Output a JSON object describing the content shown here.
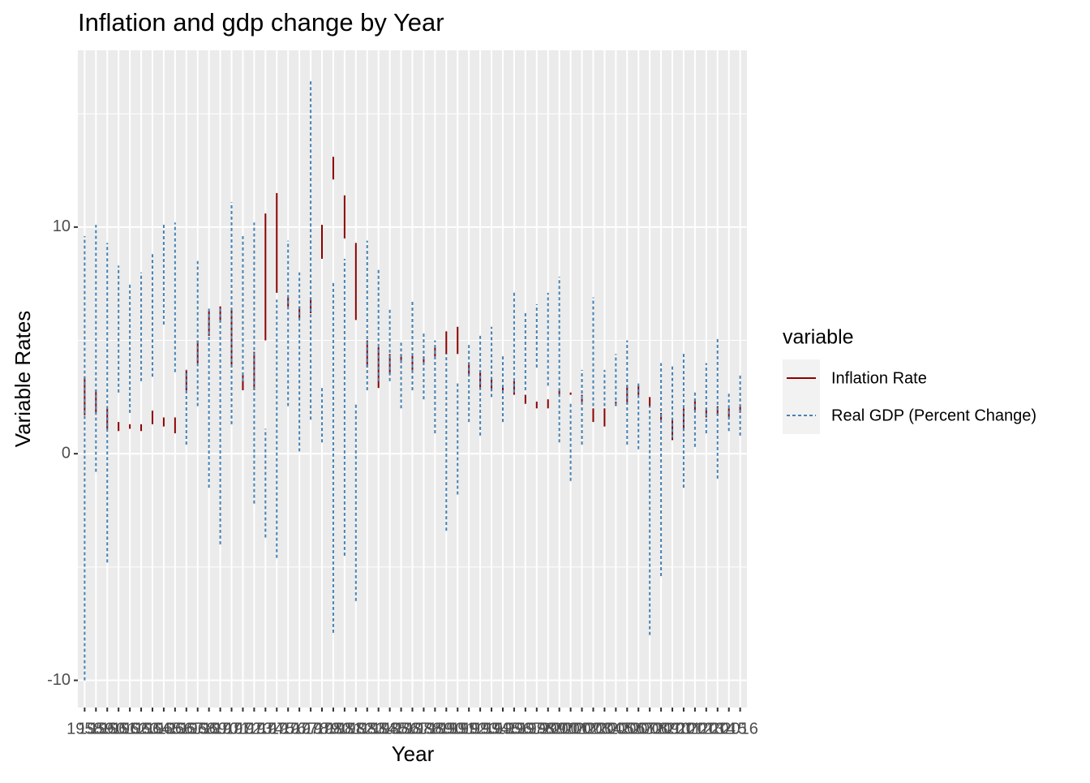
{
  "chart_data": {
    "type": "range-segment",
    "title": "Inflation and gdp change by Year",
    "x_label": "Year",
    "y_label": "Variable Rates",
    "categories": [
      "1958",
      "1959",
      "1960",
      "1961",
      "1962",
      "1963",
      "1964",
      "1965",
      "1966",
      "1967",
      "1968",
      "1969",
      "1970",
      "1971",
      "1972",
      "1973",
      "1974",
      "1975",
      "1976",
      "1977",
      "1978",
      "1979",
      "1980",
      "1981",
      "1982",
      "1983",
      "1984",
      "1985",
      "1986",
      "1987",
      "1988",
      "1989",
      "1990",
      "1991",
      "1992",
      "1993",
      "1994",
      "1995",
      "1996",
      "1997",
      "1998",
      "1999",
      "2000",
      "2001",
      "2002",
      "2003",
      "2004",
      "2005",
      "2006",
      "2007",
      "2008",
      "2009",
      "2010",
      "2011",
      "2012",
      "2013",
      "2014",
      "2015",
      "2016"
    ],
    "ylim": [
      -11.2,
      17.8
    ],
    "yticks": [
      -10,
      0,
      10
    ],
    "grid": true,
    "legend_title": "variable",
    "series": [
      {
        "name": "Inflation Rate",
        "color": "#8b0000",
        "dash": "none",
        "low": [
          1.7,
          1.8,
          1.1,
          1.0,
          1.1,
          1.0,
          1.3,
          1.2,
          0.9,
          2.8,
          4.0,
          5.2,
          5.8,
          3.8,
          2.8,
          2.8,
          5.0,
          7.1,
          6.5,
          6.0,
          6.2,
          8.6,
          12.1,
          9.5,
          5.9,
          3.8,
          2.9,
          3.5,
          4.0,
          3.7,
          4.0,
          4.3,
          4.4,
          4.4,
          3.5,
          2.9,
          2.8,
          2.8,
          2.6,
          2.2,
          2.0,
          2.0,
          2.6,
          2.6,
          2.3,
          1.4,
          1.2,
          2.1,
          2.2,
          2.6,
          2.1,
          1.5,
          0.6,
          1.0,
          1.9,
          1.6,
          1.7,
          1.6,
          1.8
        ],
        "high": [
          3.4,
          2.8,
          2.0,
          1.4,
          1.3,
          1.3,
          1.9,
          1.6,
          1.6,
          3.7,
          5.0,
          6.3,
          6.5,
          6.4,
          3.5,
          4.5,
          10.6,
          11.5,
          6.9,
          6.5,
          6.9,
          10.1,
          13.1,
          11.4,
          9.3,
          5.0,
          4.7,
          4.4,
          4.4,
          4.4,
          4.3,
          4.7,
          5.4,
          5.6,
          4.0,
          3.6,
          3.3,
          3.0,
          3.2,
          2.6,
          2.3,
          2.4,
          2.8,
          2.7,
          2.6,
          2.0,
          2.0,
          2.3,
          3.0,
          3.0,
          2.5,
          1.8,
          1.5,
          2.0,
          2.4,
          2.0,
          2.1,
          2.0,
          2.1
        ]
      },
      {
        "name": "Real GDP (Percent Change)",
        "color": "#4682b4",
        "dash": "4 3",
        "low": [
          -10.0,
          -0.8,
          -4.8,
          2.7,
          1.8,
          3.2,
          3.4,
          5.7,
          3.6,
          0.4,
          2.1,
          -1.5,
          -4.0,
          1.3,
          3.2,
          -2.2,
          -3.7,
          -4.6,
          2.1,
          0.1,
          1.5,
          0.5,
          -7.9,
          -4.5,
          -6.5,
          2.8,
          3.2,
          3.2,
          2.0,
          2.8,
          2.4,
          0.9,
          -3.4,
          -1.8,
          1.4,
          0.8,
          2.5,
          1.4,
          2.7,
          2.8,
          3.8,
          3.0,
          0.5,
          -1.2,
          0.4,
          2.1,
          2.1,
          2.1,
          0.4,
          0.2,
          -8.0,
          -5.4,
          0.7,
          -1.5,
          0.3,
          0.9,
          -1.1,
          1.0,
          0.8
        ],
        "high": [
          9.6,
          10.1,
          9.3,
          8.3,
          7.5,
          8.0,
          8.9,
          10.2,
          10.2,
          3.7,
          8.5,
          6.4,
          6.4,
          11.1,
          9.6,
          10.2,
          1.1,
          6.8,
          9.4,
          8.0,
          16.5,
          2.9,
          7.6,
          8.6,
          2.2,
          9.4,
          8.2,
          6.4,
          5.0,
          6.8,
          5.4,
          5.0,
          4.4,
          3.1,
          4.8,
          5.3,
          5.6,
          4.3,
          7.2,
          6.2,
          6.6,
          7.1,
          7.8,
          2.2,
          3.7,
          6.9,
          3.7,
          4.4,
          5.0,
          3.1,
          2.1,
          4.0,
          3.9,
          4.5,
          2.8,
          4.0,
          5.1,
          2.7,
          3.5
        ]
      }
    ]
  }
}
